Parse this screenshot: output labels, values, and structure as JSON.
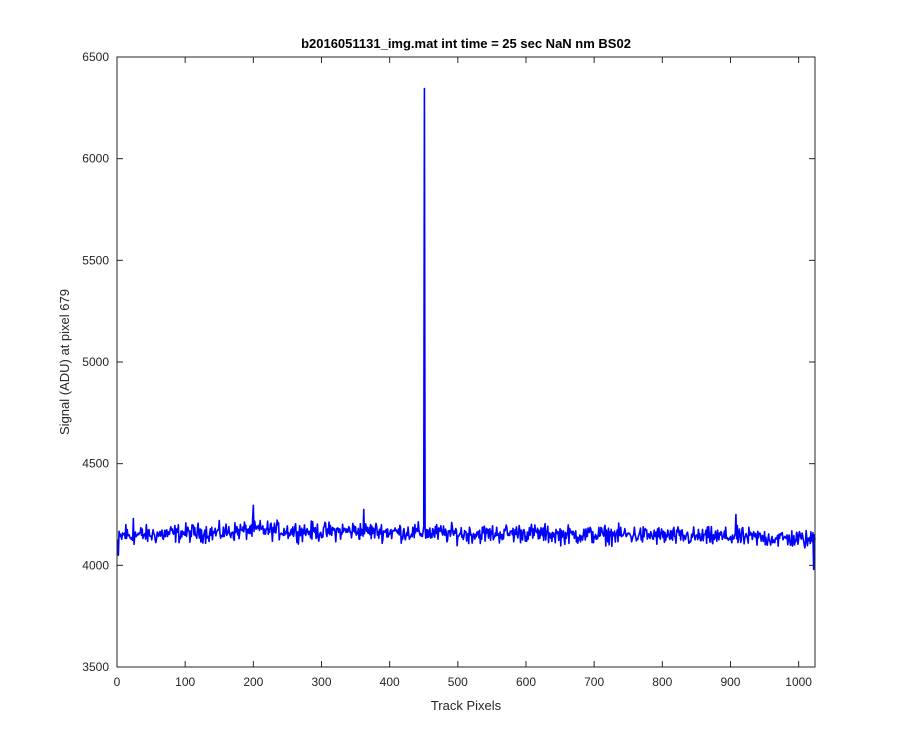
{
  "chart_data": {
    "type": "line",
    "title": "b2016051131_img.mat int time = 25 sec  NaN nm BS02",
    "xlabel": "Track Pixels",
    "ylabel": "Signal (ADU) at pixel 679",
    "xlim": [
      0,
      1024
    ],
    "ylim": [
      3500,
      6500
    ],
    "xticks": [
      0,
      100,
      200,
      300,
      400,
      500,
      600,
      700,
      800,
      900,
      1000
    ],
    "yticks": [
      3500,
      4000,
      4500,
      5000,
      5500,
      6000,
      6500
    ],
    "xtick_labels": [
      "0",
      "100",
      "200",
      "300",
      "400",
      "500",
      "600",
      "700",
      "800",
      "900",
      "1000"
    ],
    "ytick_labels": [
      "3500",
      "4000",
      "4500",
      "5000",
      "5500",
      "6000",
      "6500"
    ],
    "grid": false,
    "box": true,
    "series": [
      {
        "color": "#0000ff",
        "x_start": 1,
        "x_step": 1,
        "baseline": 4150,
        "noise_amplitude": 50,
        "events": [
          {
            "x": 2,
            "y": 4050
          },
          {
            "x": 13,
            "y": 4200
          },
          {
            "x": 24,
            "y": 4230
          },
          {
            "x": 200,
            "y": 4295
          },
          {
            "x": 362,
            "y": 4275
          },
          {
            "x": 450,
            "y": 4190
          },
          {
            "x": 451,
            "y": 6345
          },
          {
            "x": 452,
            "y": 4180
          },
          {
            "x": 908,
            "y": 4250
          },
          {
            "x": 1021,
            "y": 4160
          },
          {
            "x": 1022,
            "y": 3980
          },
          {
            "x": 1023,
            "y": 4150
          }
        ],
        "points": [
          [
            0,
            4120
          ],
          [
            10,
            4150
          ],
          [
            20,
            4140
          ],
          [
            30,
            4150
          ],
          [
            40,
            4150
          ],
          [
            50,
            4150
          ],
          [
            100,
            4160
          ],
          [
            150,
            4160
          ],
          [
            200,
            4175
          ],
          [
            250,
            4170
          ],
          [
            300,
            4165
          ],
          [
            350,
            4170
          ],
          [
            400,
            4165
          ],
          [
            450,
            4160
          ],
          [
            500,
            4155
          ],
          [
            550,
            4155
          ],
          [
            600,
            4160
          ],
          [
            650,
            4150
          ],
          [
            700,
            4150
          ],
          [
            750,
            4150
          ],
          [
            800,
            4145
          ],
          [
            850,
            4140
          ],
          [
            900,
            4140
          ],
          [
            950,
            4135
          ],
          [
            1000,
            4130
          ],
          [
            1024,
            4120
          ]
        ]
      }
    ]
  }
}
